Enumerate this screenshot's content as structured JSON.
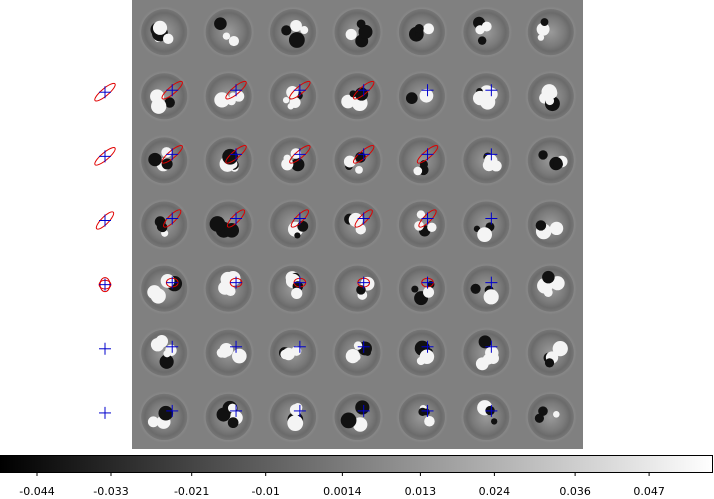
{
  "chart_data": {
    "type": "heatmap",
    "title": "",
    "xlabel": "",
    "ylabel": "",
    "grid": false,
    "rows": 7,
    "cols": 7,
    "colormap": "gray",
    "colorbar": {
      "orientation": "horizontal",
      "range": [
        -0.0495,
        0.0565
      ],
      "ticks": [
        -0.044,
        -0.033,
        -0.021,
        -0.01,
        0.0014,
        0.013,
        0.024,
        0.036,
        0.047
      ],
      "tick_labels": [
        "-0.044",
        "-0.033",
        "-0.021",
        "-0.01",
        "0.0014",
        "0.013",
        "0.024",
        "0.036",
        "0.047"
      ]
    },
    "row_markers": [
      {
        "row": 1,
        "type": "ellipse",
        "angle": -40,
        "rx": 1.0,
        "ry": 0.45
      },
      {
        "row": 2,
        "type": "ellipse",
        "angle": -40,
        "rx": 1.0,
        "ry": 0.45
      },
      {
        "row": 3,
        "type": "ellipse",
        "angle": -45,
        "rx": 0.9,
        "ry": 0.45
      },
      {
        "row": 4,
        "type": "ellipse",
        "angle": 0,
        "rx": 0.45,
        "ry": 0.55
      },
      {
        "row": 5,
        "type": "cross",
        "angle": 0,
        "rx": 0,
        "ry": 0
      },
      {
        "row": 6,
        "type": "cross",
        "angle": 0,
        "rx": 0,
        "ry": 0
      }
    ],
    "cell_markers": [
      {
        "row": 1,
        "col": 0,
        "ellipse": true
      },
      {
        "row": 1,
        "col": 1,
        "ellipse": true
      },
      {
        "row": 1,
        "col": 2,
        "ellipse": true
      },
      {
        "row": 1,
        "col": 3,
        "ellipse": true
      },
      {
        "row": 1,
        "col": 4,
        "ellipse": false
      },
      {
        "row": 1,
        "col": 5,
        "ellipse": false
      },
      {
        "row": 2,
        "col": 0,
        "ellipse": true
      },
      {
        "row": 2,
        "col": 1,
        "ellipse": true
      },
      {
        "row": 2,
        "col": 2,
        "ellipse": true
      },
      {
        "row": 2,
        "col": 3,
        "ellipse": true
      },
      {
        "row": 2,
        "col": 4,
        "ellipse": true
      },
      {
        "row": 2,
        "col": 5,
        "ellipse": false
      },
      {
        "row": 3,
        "col": 0,
        "ellipse": true
      },
      {
        "row": 3,
        "col": 1,
        "ellipse": true
      },
      {
        "row": 3,
        "col": 2,
        "ellipse": true
      },
      {
        "row": 3,
        "col": 3,
        "ellipse": true
      },
      {
        "row": 3,
        "col": 4,
        "ellipse": true
      },
      {
        "row": 3,
        "col": 5,
        "ellipse": false
      },
      {
        "row": 4,
        "col": 0,
        "ellipse": true
      },
      {
        "row": 4,
        "col": 1,
        "ellipse": true
      },
      {
        "row": 4,
        "col": 2,
        "ellipse": true
      },
      {
        "row": 4,
        "col": 3,
        "ellipse": true
      },
      {
        "row": 4,
        "col": 4,
        "ellipse": true
      },
      {
        "row": 4,
        "col": 5,
        "ellipse": false
      },
      {
        "row": 5,
        "col": 0,
        "ellipse": true
      },
      {
        "row": 5,
        "col": 1,
        "ellipse": true
      },
      {
        "row": 5,
        "col": 2,
        "ellipse": true
      },
      {
        "row": 5,
        "col": 3,
        "ellipse": true
      },
      {
        "row": 5,
        "col": 4,
        "ellipse": true
      },
      {
        "row": 5,
        "col": 5,
        "ellipse": false
      },
      {
        "row": 6,
        "col": 0,
        "ellipse": false
      },
      {
        "row": 6,
        "col": 1,
        "ellipse": true
      },
      {
        "row": 6,
        "col": 2,
        "ellipse": true
      },
      {
        "row": 6,
        "col": 3,
        "ellipse": true
      },
      {
        "row": 6,
        "col": 4,
        "ellipse": true
      },
      {
        "row": 6,
        "col": 5,
        "ellipse": false
      }
    ],
    "marker_colors": {
      "ellipse": "#e00000",
      "cross": "#0000cc"
    },
    "background_color": "#808080"
  }
}
